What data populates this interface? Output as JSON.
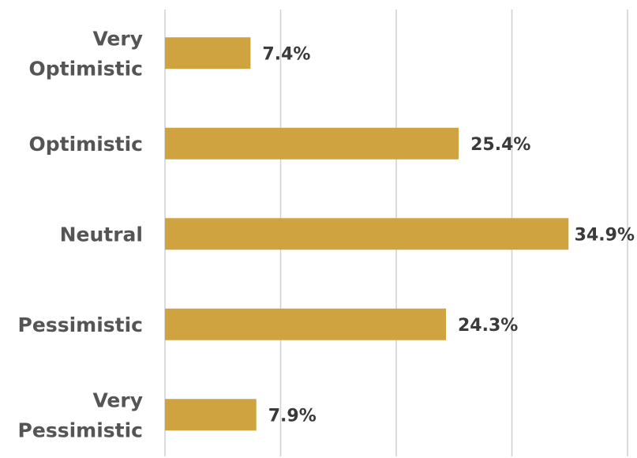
{
  "chart_data": {
    "type": "bar",
    "orientation": "horizontal",
    "categories": [
      "Very Optimistic",
      "Optimistic",
      "Neutral",
      "Pessimistic",
      "Very Pessimistic"
    ],
    "category_lines": [
      [
        "Very",
        "Optimistic"
      ],
      [
        "Optimistic"
      ],
      [
        "Neutral"
      ],
      [
        "Pessimistic"
      ],
      [
        "Very",
        "Pessimistic"
      ]
    ],
    "values": [
      7.4,
      25.4,
      34.9,
      24.3,
      7.9
    ],
    "value_labels": [
      "7.4%",
      "25.4%",
      "34.9%",
      "24.3%",
      "7.9%"
    ],
    "xlim": [
      0,
      40
    ],
    "grid": true,
    "colors": {
      "bar": "#CFA440",
      "grid": "#D0D0D0",
      "label": "#555555",
      "value": "#3A3A3A"
    }
  }
}
